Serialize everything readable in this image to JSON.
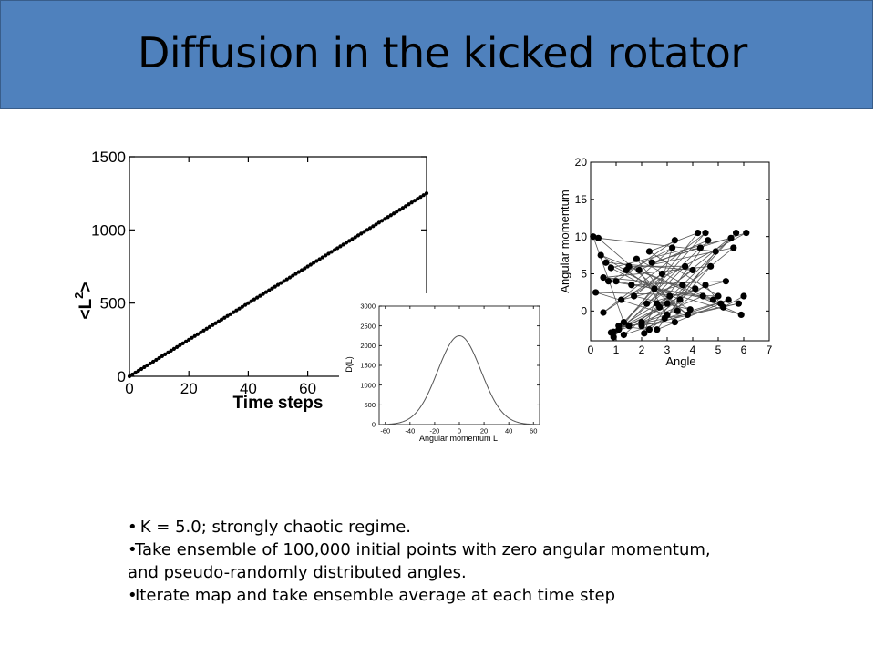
{
  "slide": {
    "title": "Diffusion in the kicked rotator",
    "bullets": [
      "K = 5.0; strongly chaotic regime.",
      "Take ensemble of 100,000 initial points with zero angular momentum, and pseudo-randomly distributed angles.",
      "Iterate map and take ensemble average at each time step"
    ],
    "bullet_glyph": "•"
  },
  "chart_data": [
    {
      "type": "line",
      "xlabel": "Time steps",
      "ylabel": "<L",
      "ylabel_exponent": "2",
      "ylabel_close": ">",
      "xlim": [
        0,
        100
      ],
      "ylim": [
        0,
        1500
      ],
      "xticks": [
        0,
        20,
        40,
        60
      ],
      "yticks": [
        0,
        500,
        1000,
        1500
      ],
      "x": [
        0,
        100
      ],
      "y": [
        0,
        1250
      ],
      "marker": "filled-circle"
    },
    {
      "type": "line",
      "xlabel": "Angular momentum L",
      "ylabel": "D(L)",
      "xlim": [
        -65,
        65
      ],
      "ylim": [
        0,
        3000
      ],
      "xticks": [
        -60,
        -40,
        -20,
        0,
        20,
        40,
        60
      ],
      "yticks": [
        0,
        500,
        1000,
        1500,
        2000,
        2500,
        3000
      ],
      "peak": 2250,
      "std": 17.5
    },
    {
      "type": "scatter",
      "xlabel": "Angle",
      "ylabel": "Angular momentum",
      "xlim": [
        0,
        7
      ],
      "ylim": [
        -4,
        20
      ],
      "xticks": [
        0,
        1,
        2,
        3,
        4,
        5,
        6,
        7
      ],
      "yticks": [
        0,
        5,
        10,
        15,
        20
      ],
      "connected": true,
      "points": [
        [
          0.1,
          10.0
        ],
        [
          1.3,
          -1.5
        ],
        [
          4.5,
          10.5
        ],
        [
          0.5,
          -0.2
        ],
        [
          2.8,
          5.0
        ],
        [
          1.7,
          2.0
        ],
        [
          3.9,
          0.2
        ],
        [
          0.8,
          5.8
        ],
        [
          5.5,
          9.8
        ],
        [
          2.1,
          -3.0
        ],
        [
          3.3,
          9.5
        ],
        [
          1.0,
          4.0
        ],
        [
          4.8,
          1.5
        ],
        [
          0.4,
          7.5
        ],
        [
          2.5,
          3.0
        ],
        [
          5.9,
          -0.5
        ],
        [
          1.5,
          6.0
        ],
        [
          3.7,
          6.0
        ],
        [
          0.9,
          -3.5
        ],
        [
          4.2,
          10.5
        ],
        [
          2.3,
          8.0
        ],
        [
          5.0,
          2.0
        ],
        [
          0.2,
          2.5
        ],
        [
          3.0,
          -0.5
        ],
        [
          1.9,
          5.5
        ],
        [
          4.6,
          9.5
        ],
        [
          2.7,
          0.5
        ],
        [
          5.7,
          10.5
        ],
        [
          1.1,
          -2.5
        ],
        [
          3.5,
          1.5
        ],
        [
          0.6,
          6.5
        ],
        [
          4.0,
          5.5
        ],
        [
          2.2,
          1.0
        ],
        [
          5.3,
          4.0
        ],
        [
          1.6,
          3.5
        ],
        [
          3.2,
          8.5
        ],
        [
          0.7,
          4.0
        ],
        [
          4.4,
          2.0
        ],
        [
          2.0,
          -1.5
        ],
        [
          5.6,
          8.5
        ],
        [
          1.4,
          5.5
        ],
        [
          3.8,
          -0.5
        ],
        [
          0.3,
          9.8
        ],
        [
          4.9,
          8.0
        ],
        [
          2.6,
          -2.5
        ],
        [
          5.1,
          1.0
        ],
        [
          1.8,
          7.0
        ],
        [
          3.4,
          0.0
        ],
        [
          0.9,
          -2.8
        ],
        [
          4.3,
          8.5
        ],
        [
          2.4,
          6.5
        ],
        [
          6.1,
          10.5
        ],
        [
          1.2,
          1.5
        ],
        [
          3.6,
          3.5
        ],
        [
          0.5,
          4.5
        ],
        [
          4.7,
          6.0
        ],
        [
          2.9,
          -1.0
        ],
        [
          5.4,
          1.5
        ],
        [
          1.3,
          -3.2
        ],
        [
          3.1,
          2.0
        ],
        [
          0.8,
          -2.9
        ],
        [
          4.1,
          3.0
        ],
        [
          2.0,
          -2.0
        ],
        [
          5.8,
          1.0
        ],
        [
          1.5,
          -2.0
        ],
        [
          3.0,
          1.0
        ],
        [
          2.6,
          1.0
        ],
        [
          3.3,
          -1.5
        ],
        [
          1.1,
          -2.0
        ],
        [
          2.3,
          -2.5
        ],
        [
          4.5,
          3.5
        ],
        [
          5.2,
          0.5
        ],
        [
          6.0,
          2.0
        ]
      ]
    }
  ]
}
